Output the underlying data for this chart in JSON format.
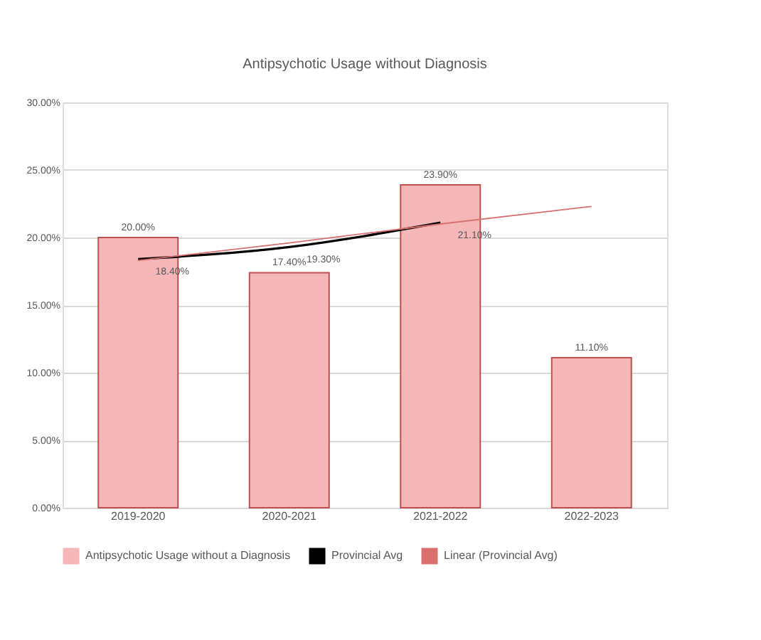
{
  "chart_data": {
    "type": "bar",
    "title": "Antipsychotic Usage without Diagnosis",
    "categories": [
      "2019-2020",
      "2020-2021",
      "2021-2022",
      "2022-2023"
    ],
    "series": [
      {
        "name": "Antipsychotic Usage without a Diagnosis",
        "color": "#f4b6b6",
        "values": [
          20.0,
          17.4,
          23.9,
          11.1
        ],
        "value_labels": [
          "20.00%",
          "17.40%",
          "23.90%",
          "11.10%"
        ]
      },
      {
        "name": "Provincial Avg",
        "type": "line",
        "color": "#000000",
        "values": [
          18.4,
          19.3,
          21.1,
          null
        ],
        "value_labels": [
          "18.40%",
          "19.30%",
          "21.10%",
          null
        ]
      },
      {
        "name": "Linear (Provincial Avg)",
        "type": "line",
        "color": "#d9706e",
        "values": [
          18.3,
          19.6,
          21.0,
          22.3
        ]
      }
    ],
    "ylim": [
      0,
      30
    ],
    "yticks": [
      {
        "value": 0,
        "label": "0.00%"
      },
      {
        "value": 5,
        "label": "5.00%"
      },
      {
        "value": 10,
        "label": "10.00%"
      },
      {
        "value": 15,
        "label": "15.00%"
      },
      {
        "value": 20,
        "label": "20.00%"
      },
      {
        "value": 25,
        "label": "25.00%"
      },
      {
        "value": 30,
        "label": "30.00%"
      }
    ],
    "grid": "y",
    "legend": "bottom"
  }
}
